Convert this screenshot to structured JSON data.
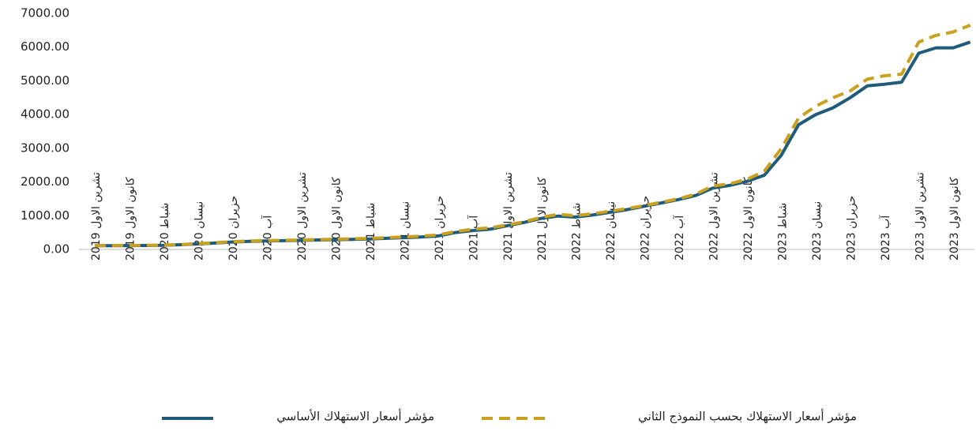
{
  "chart_data": {
    "type": "line",
    "categories": [
      "تشرين الاول 2019",
      null,
      "كانون الاول 2019",
      null,
      "شباط 2020",
      null,
      "نيسان 2020",
      null,
      "حزيران 2020",
      null,
      "آب 2020",
      null,
      "تشرين الاول 2020",
      null,
      "كانون الاول 2020",
      null,
      "شباط 2021",
      null,
      "نيسان 2021",
      null,
      "حزيران 2021",
      null,
      "آب 2021",
      null,
      "تشرين الاول 2021",
      null,
      "كانون الاول 2021",
      null,
      "شباط 2022",
      null,
      "نيسان 2022",
      null,
      "حزيران 2022",
      null,
      "آب 2022",
      null,
      "تشرين الاول 2022",
      null,
      "كانون الاول 2022",
      null,
      "شباط 2023",
      null,
      "نيسان 2023",
      null,
      "حزيران 2023",
      null,
      "آب 2023",
      null,
      "تشرين الاول 2023",
      null,
      "كانون الاول 2023",
      null
    ],
    "series": [
      {
        "name": "مؤشر أسعار الاستهلاك الأساسي",
        "color": "#1f5b7a",
        "dashed": false,
        "values": [
          110,
          112,
          115,
          118,
          122,
          140,
          165,
          190,
          220,
          240,
          250,
          260,
          270,
          280,
          290,
          300,
          310,
          330,
          350,
          370,
          400,
          500,
          560,
          600,
          700,
          800,
          920,
          990,
          960,
          1020,
          1100,
          1180,
          1280,
          1380,
          1480,
          1600,
          1820,
          1900,
          2020,
          2200,
          2800,
          3700,
          4000,
          4200,
          4500,
          4850,
          4900,
          4960,
          5820,
          5980,
          5980,
          6150
        ]
      },
      {
        "name": "مؤشر أسعار الاستهلاك بحسب النموذج الثاني",
        "color": "#c9a11e",
        "dashed": true,
        "values": [
          115,
          117,
          120,
          123,
          128,
          145,
          172,
          200,
          230,
          250,
          262,
          272,
          282,
          292,
          302,
          315,
          328,
          348,
          370,
          395,
          430,
          530,
          600,
          640,
          720,
          820,
          950,
          1040,
          1000,
          1060,
          1130,
          1210,
          1300,
          1400,
          1500,
          1640,
          1880,
          1950,
          2080,
          2320,
          3000,
          3900,
          4250,
          4500,
          4700,
          5050,
          5150,
          5200,
          6150,
          6350,
          6450,
          6650
        ]
      }
    ],
    "ylim": [
      0,
      7000
    ],
    "yticks": [
      {
        "value": 0,
        "label": "0.00"
      },
      {
        "value": 1000,
        "label": "1000.00"
      },
      {
        "value": 2000,
        "label": "2000.00"
      },
      {
        "value": 3000,
        "label": "3000.00"
      },
      {
        "value": 4000,
        "label": "4000.00"
      },
      {
        "value": 5000,
        "label": "5000.00"
      },
      {
        "value": 6000,
        "label": "6000.00"
      },
      {
        "value": 7000,
        "label": "7000.00"
      }
    ],
    "grid": false
  }
}
